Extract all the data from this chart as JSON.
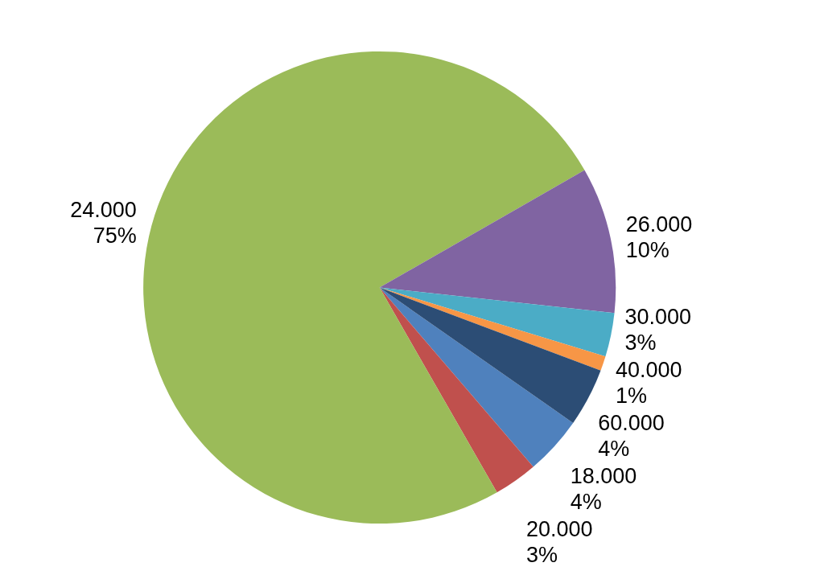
{
  "chart_data": {
    "type": "pie",
    "categories": [
      "18.000",
      "20.000",
      "24.000",
      "26.000",
      "30.000",
      "40.000",
      "60.000"
    ],
    "values": [
      4,
      3,
      75,
      10,
      3,
      1,
      4
    ],
    "value_labels": [
      "4%",
      "3%",
      "75%",
      "10%",
      "3%",
      "1%",
      "4%"
    ],
    "colors": [
      "#4f81bd",
      "#c0504d",
      "#9bbb59",
      "#8064a2",
      "#4bacc6",
      "#f79646",
      "#2c4d75"
    ],
    "legend": false
  }
}
